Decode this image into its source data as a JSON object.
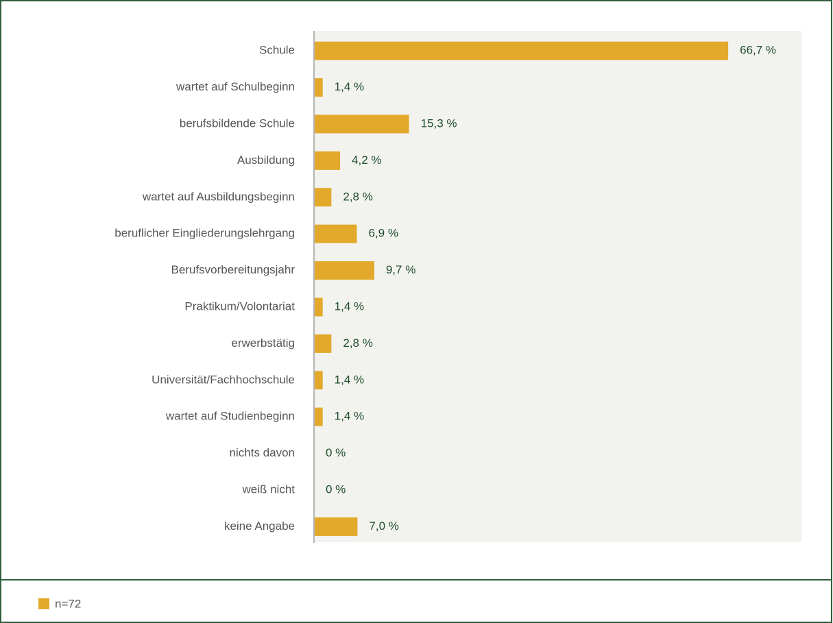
{
  "chart_data": {
    "type": "barh",
    "categories": [
      "Schule",
      "wartet auf Schulbeginn",
      "berufsbildende Schule",
      "Ausbildung",
      "wartet auf Ausbildungsbeginn",
      "beruflicher Eingliederungslehrgang",
      "Berufsvorbereitungsjahr",
      "Praktikum/Volontariat",
      "erwerbstätig",
      "Universität/Fachhochschule",
      "wartet auf Studienbeginn",
      "nichts davon",
      "weiß nicht",
      "keine Angabe"
    ],
    "series": [
      {
        "name": "n=72",
        "color": "#e2a92b",
        "values": [
          66.7,
          1.4,
          15.3,
          4.2,
          2.8,
          6.9,
          9.7,
          1.4,
          2.8,
          1.4,
          1.4,
          0,
          0,
          7.0
        ],
        "value_labels": [
          "66,7 %",
          "1,4 %",
          "15,3 %",
          "4,2 %",
          "2,8 %",
          "6,9 %",
          "9,7 %",
          "1,4 %",
          "2,8 %",
          "1,4 %",
          "1,4 %",
          "0 %",
          "0 %",
          "7,0 %"
        ]
      }
    ],
    "xlim": [
      0,
      78.5
    ]
  }
}
